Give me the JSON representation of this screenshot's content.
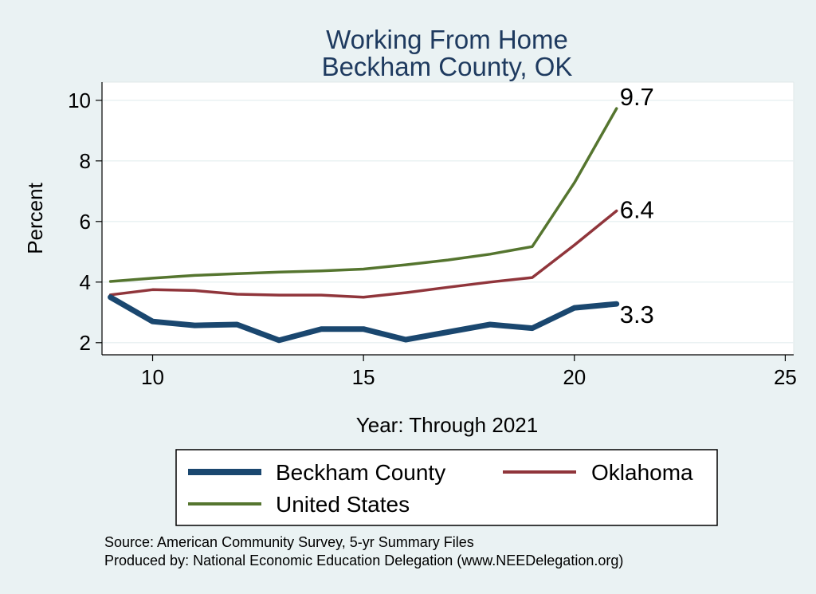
{
  "chart_data": {
    "type": "line",
    "title": [
      "Working From Home",
      "Beckham County, OK"
    ],
    "xlabel": "Year: Through 2021",
    "ylabel": "Percent",
    "xlim": [
      8.8,
      25.2
    ],
    "ylim": [
      1.6,
      10.6
    ],
    "xticks": [
      10,
      15,
      20,
      25
    ],
    "yticks": [
      2,
      4,
      6,
      8,
      10
    ],
    "grid": "horizontal",
    "legend_position": "bottom",
    "series": [
      {
        "name": "Beckham County",
        "color": "#1a476f",
        "x": [
          9,
          10,
          11,
          12,
          13,
          14,
          15,
          16,
          17,
          18,
          19,
          20,
          21
        ],
        "values": [
          3.5,
          2.7,
          2.57,
          2.6,
          2.08,
          2.45,
          2.45,
          2.1,
          2.35,
          2.6,
          2.48,
          3.15,
          3.28
        ],
        "end_label": "3.3"
      },
      {
        "name": "Oklahoma",
        "color": "#90353b",
        "x": [
          9,
          10,
          11,
          12,
          13,
          14,
          15,
          16,
          17,
          18,
          19,
          20,
          21
        ],
        "values": [
          3.58,
          3.75,
          3.72,
          3.6,
          3.57,
          3.57,
          3.5,
          3.65,
          3.83,
          4.0,
          4.15,
          5.22,
          6.35
        ],
        "end_label": "6.4"
      },
      {
        "name": "United States",
        "color": "#55752f",
        "x": [
          9,
          10,
          11,
          12,
          13,
          14,
          15,
          16,
          17,
          18,
          19,
          20,
          21
        ],
        "values": [
          4.02,
          4.13,
          4.22,
          4.28,
          4.33,
          4.37,
          4.43,
          4.57,
          4.73,
          4.92,
          5.17,
          7.28,
          9.73
        ],
        "end_label": "9.7"
      }
    ],
    "notes": [
      "Source: American Community Survey, 5-yr Summary Files",
      "Produced by: National Economic Education Delegation (www.NEEDelegation.org)"
    ]
  }
}
